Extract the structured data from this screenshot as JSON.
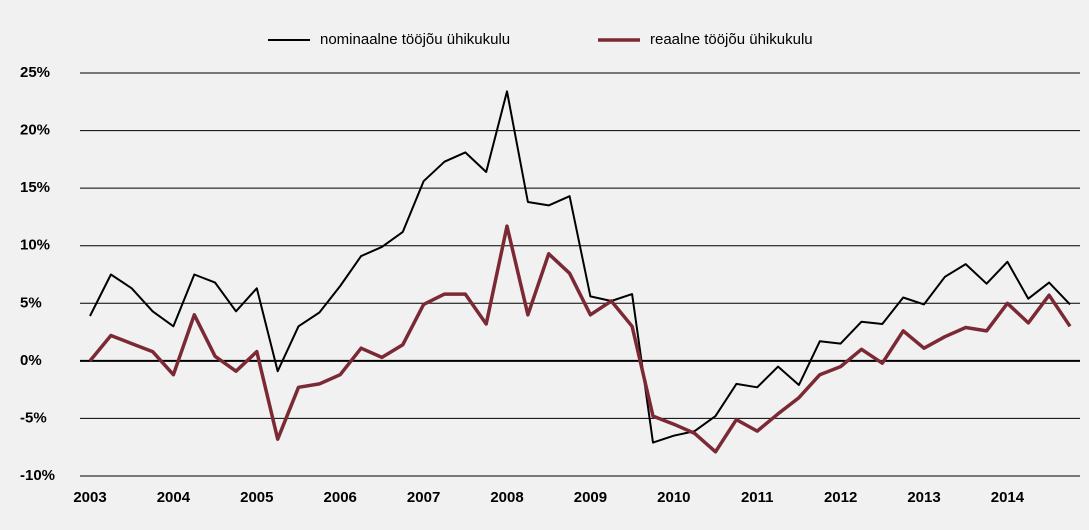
{
  "chart_data": {
    "type": "line",
    "categories": [
      "2003",
      null,
      null,
      null,
      "2004",
      null,
      null,
      null,
      "2005",
      null,
      null,
      null,
      "2006",
      null,
      null,
      null,
      "2007",
      null,
      null,
      null,
      "2008",
      null,
      null,
      null,
      "2009",
      null,
      null,
      null,
      "2010",
      null,
      null,
      null,
      "2011",
      null,
      null,
      null,
      "2012",
      null,
      null,
      null,
      "2013",
      null,
      null,
      null,
      "2014",
      null,
      null,
      null
    ],
    "series": [
      {
        "name": "nominaalne tööjõu ühikukulu",
        "color": "#000000",
        "values": [
          3.9,
          7.5,
          6.3,
          4.3,
          3.0,
          7.5,
          6.8,
          4.3,
          6.3,
          -0.9,
          3.0,
          4.2,
          6.5,
          9.1,
          9.9,
          11.2,
          15.6,
          17.3,
          18.1,
          16.4,
          23.4,
          13.8,
          13.5,
          14.3,
          5.6,
          5.2,
          5.8,
          -7.1,
          -6.5,
          -6.1,
          -4.8,
          -2.0,
          -2.3,
          -0.5,
          -2.1,
          1.7,
          1.5,
          3.4,
          3.2,
          5.5,
          4.9,
          7.3,
          8.4,
          6.7,
          8.6,
          5.4,
          6.8,
          4.9
        ]
      },
      {
        "name": "reaalne tööjõu ühikukulu",
        "color": "#7b2a35",
        "values": [
          0.0,
          2.2,
          1.5,
          0.8,
          -1.2,
          4.0,
          0.4,
          -0.9,
          0.8,
          -6.8,
          -2.3,
          -2.0,
          -1.2,
          1.1,
          0.3,
          1.4,
          4.9,
          5.8,
          5.8,
          3.2,
          11.7,
          4.0,
          9.3,
          7.6,
          4.0,
          5.2,
          3.0,
          -4.8,
          -5.5,
          -6.3,
          -7.9,
          -5.1,
          -6.1,
          -4.6,
          -3.2,
          -1.2,
          -0.5,
          1.0,
          -0.2,
          2.6,
          1.1,
          2.1,
          2.9,
          2.6,
          5.0,
          3.3,
          5.7,
          3.0
        ]
      }
    ],
    "ylim": [
      -10,
      25
    ],
    "yticks": [
      {
        "value": -10,
        "label": "-10%"
      },
      {
        "value": -5,
        "label": "-5%"
      },
      {
        "value": 0,
        "label": "0%"
      },
      {
        "value": 5,
        "label": "5%"
      },
      {
        "value": 10,
        "label": "10%"
      },
      {
        "value": 15,
        "label": "15%"
      },
      {
        "value": 20,
        "label": "20%"
      },
      {
        "value": 25,
        "label": "25%"
      }
    ],
    "grid": true,
    "legend": "top"
  }
}
